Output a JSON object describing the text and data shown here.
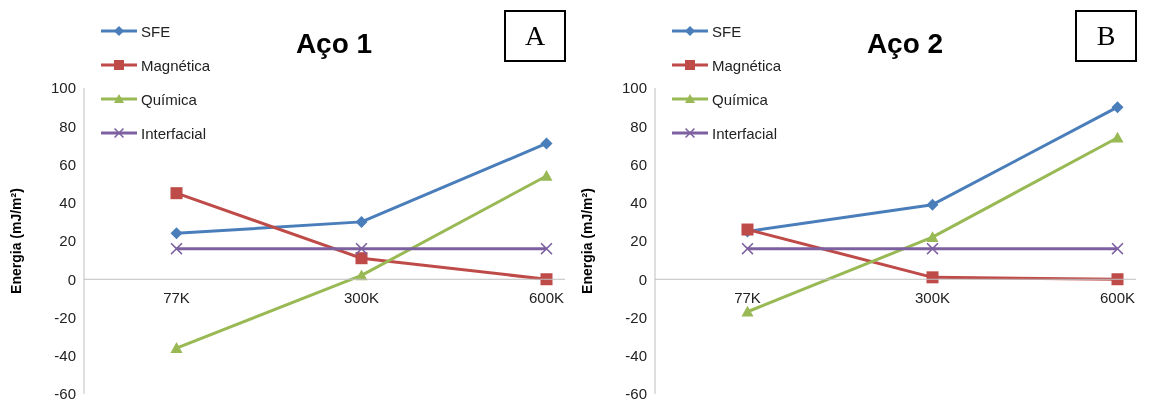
{
  "chart_data": [
    {
      "type": "line",
      "title": "Aço 1",
      "ylabel": "Energia (mJ/m²)",
      "categories": [
        "77K",
        "300K",
        "600K"
      ],
      "annotations": [
        "A"
      ],
      "series": [
        {
          "name": "SFE",
          "color": "#4a7ebb",
          "marker": "diamond",
          "values": [
            24,
            30,
            71
          ]
        },
        {
          "name": "Magnética",
          "color": "#be4b48",
          "marker": "square",
          "values": [
            45,
            11,
            0
          ]
        },
        {
          "name": "Química",
          "color": "#98b954",
          "marker": "triangle",
          "values": [
            -36,
            2,
            54
          ]
        },
        {
          "name": "Interfacial",
          "color": "#7d60a0",
          "marker": "cross",
          "values": [
            16,
            16,
            16
          ]
        }
      ],
      "ylim": [
        -60,
        100
      ],
      "yticks": [
        -60,
        -40,
        -20,
        0,
        20,
        40,
        60,
        80,
        100
      ],
      "grid": false,
      "legend": "top left"
    },
    {
      "type": "line",
      "title": "Aço 2",
      "ylabel": "Energia (mJ/m²)",
      "categories": [
        "77K",
        "300K",
        "600K"
      ],
      "annotations": [
        "B"
      ],
      "series": [
        {
          "name": "SFE",
          "color": "#4a7ebb",
          "marker": "diamond",
          "values": [
            25,
            39,
            90
          ]
        },
        {
          "name": "Magnética",
          "color": "#be4b48",
          "marker": "square",
          "values": [
            26,
            1,
            0
          ]
        },
        {
          "name": "Química",
          "color": "#98b954",
          "marker": "triangle",
          "values": [
            -17,
            22,
            74
          ]
        },
        {
          "name": "Interfacial",
          "color": "#7d60a0",
          "marker": "cross",
          "values": [
            16,
            16,
            16
          ]
        }
      ],
      "ylim": [
        -60,
        100
      ],
      "yticks": [
        -60,
        -40,
        -20,
        0,
        20,
        40,
        60,
        80,
        100
      ],
      "grid": false,
      "legend": "top left"
    }
  ]
}
